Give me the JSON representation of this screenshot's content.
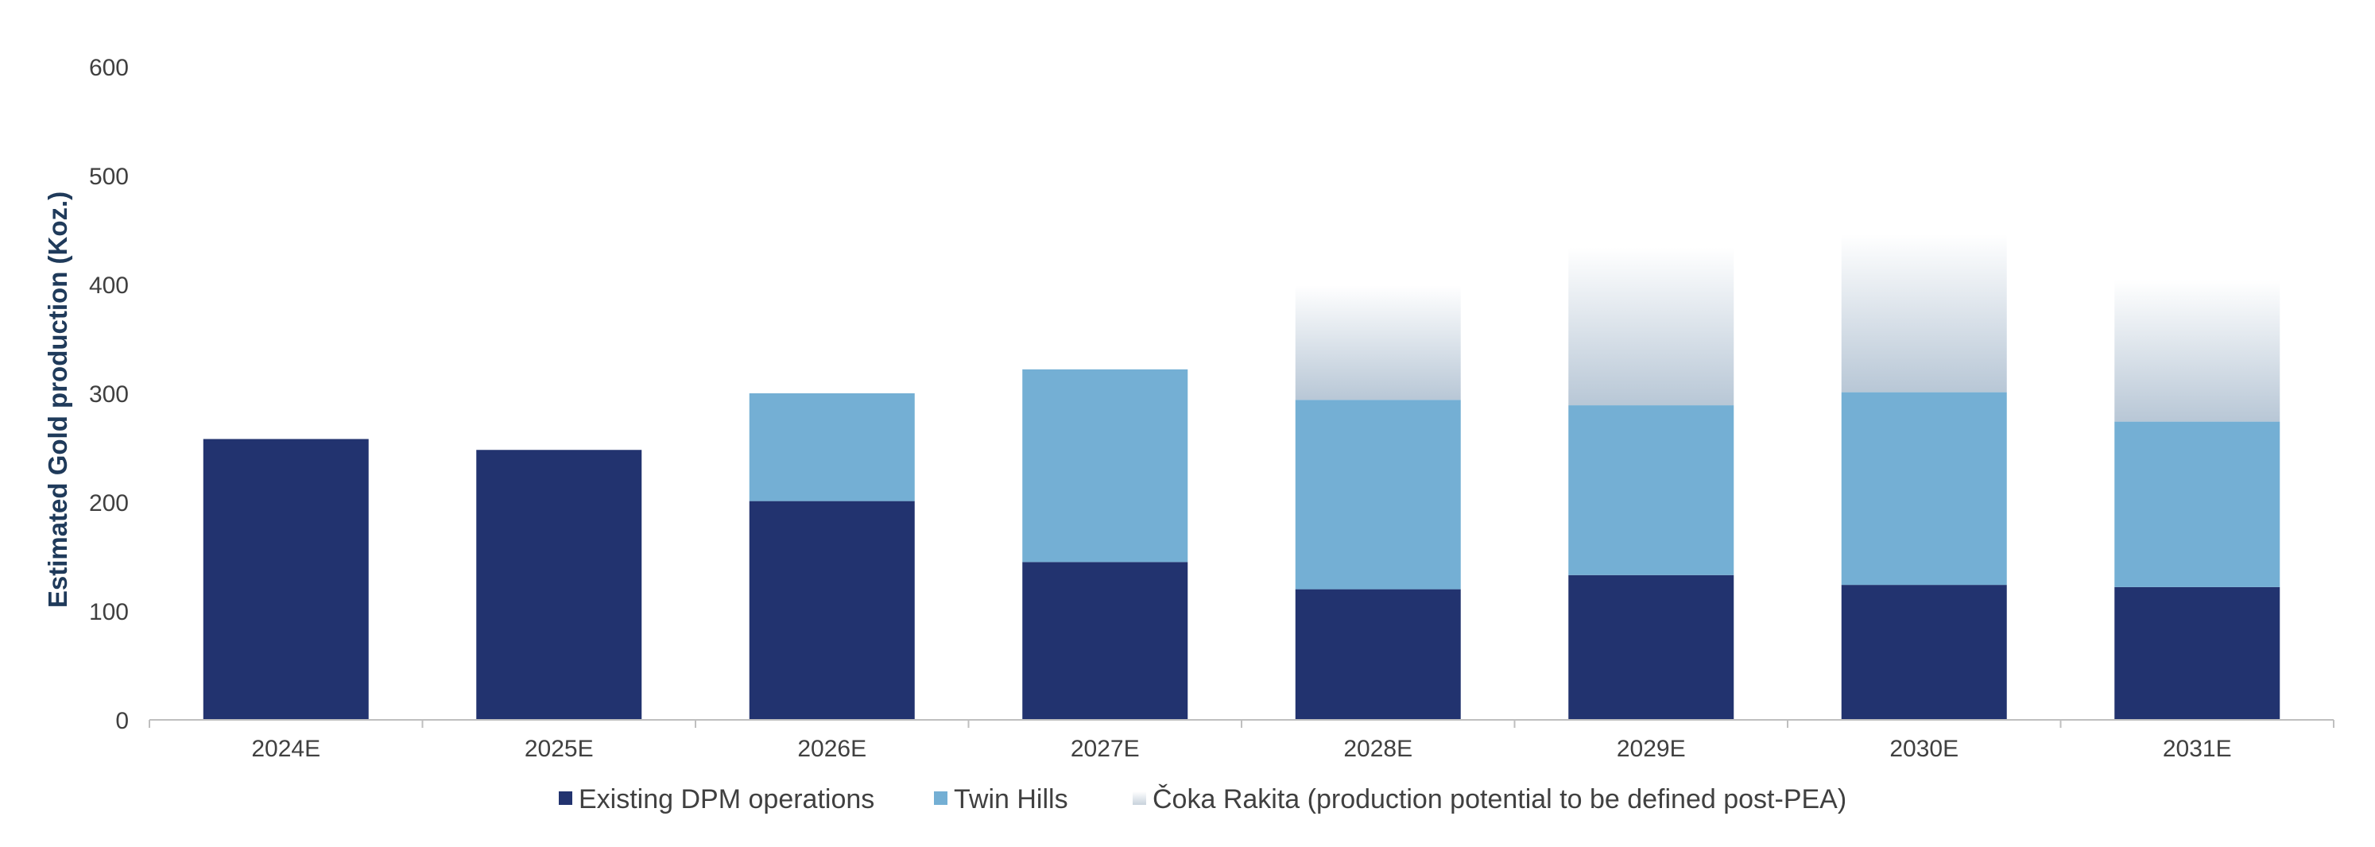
{
  "chart_data": {
    "type": "bar",
    "stacked": true,
    "ylabel": "Estimated Gold production (Koz.)",
    "ylim": [
      0,
      600
    ],
    "yticks": [
      0,
      100,
      200,
      300,
      400,
      500,
      600
    ],
    "grid": false,
    "legend_position": "bottom",
    "categories": [
      "2024E",
      "2025E",
      "2026E",
      "2027E",
      "2028E",
      "2029E",
      "2030E",
      "2031E"
    ],
    "series": [
      {
        "name": "Existing DPM operations",
        "color": "#22336f",
        "values": [
          258,
          248,
          201,
          145,
          120,
          133,
          124,
          122
        ]
      },
      {
        "name": "Twin Hills",
        "color": "#74afd4",
        "values": [
          0,
          0,
          99,
          177,
          174,
          156,
          177,
          152
        ]
      },
      {
        "name": "Čoka Rakita (production potential to be defined post-PEA)",
        "color": "#b8c7d6",
        "style": "gradient-fade",
        "values": [
          0,
          0,
          0,
          0,
          105,
          145,
          145,
          130
        ]
      }
    ]
  }
}
